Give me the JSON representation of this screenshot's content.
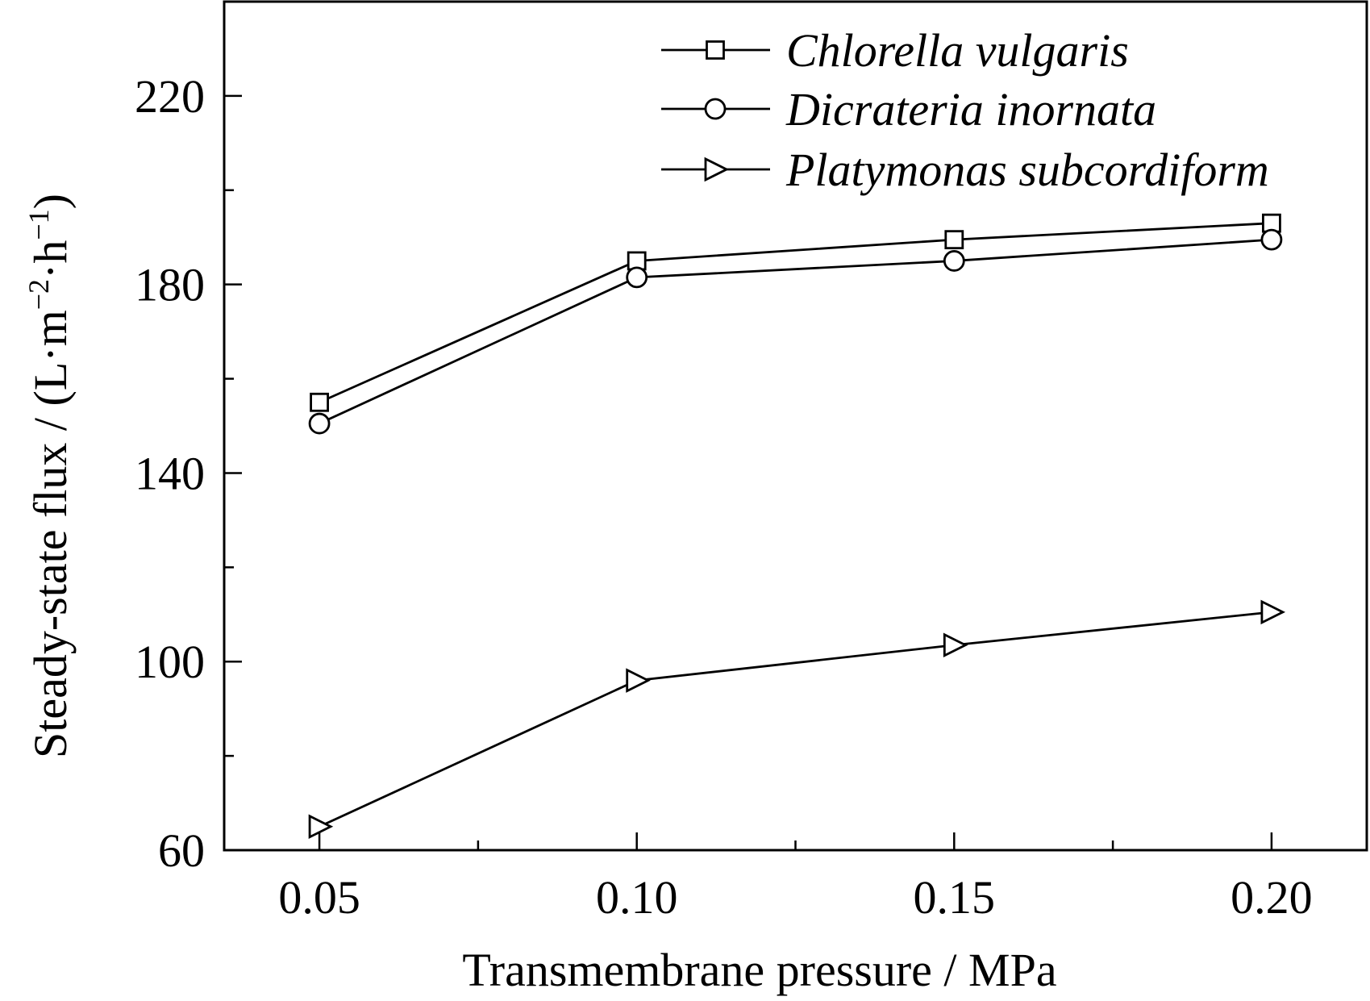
{
  "chart_data": {
    "type": "line",
    "xlabel": "Transmembrane pressure / MPa",
    "ylabel_main": "Steady-state flux / (L·m",
    "ylabel_sup1": "−2",
    "ylabel_mid": "·h",
    "ylabel_sup2": "−1",
    "ylabel_end": ")",
    "xlim": [
      0.035,
      0.215
    ],
    "ylim": [
      60,
      240
    ],
    "x_ticks": [
      0.05,
      0.1,
      0.15,
      0.2
    ],
    "x_tick_labels": [
      "0.05",
      "0.10",
      "0.15",
      "0.20"
    ],
    "x_minor_ticks": [
      0.075,
      0.125,
      0.175
    ],
    "y_ticks": [
      60,
      100,
      140,
      180,
      220
    ],
    "y_tick_labels": [
      "60",
      "100",
      "140",
      "180",
      "220"
    ],
    "y_minor_ticks": [
      80,
      120,
      160,
      200
    ],
    "grid": false,
    "legend_position": "top-right",
    "x": [
      0.05,
      0.1,
      0.15,
      0.2
    ],
    "series": [
      {
        "name": "Chlorella vulgaris",
        "marker": "square",
        "values": [
          155,
          185,
          189.5,
          193
        ]
      },
      {
        "name": "Dicrateria inornata",
        "marker": "circle",
        "values": [
          150.5,
          181.5,
          185,
          189.5
        ]
      },
      {
        "name": "Platymonas subcordiform",
        "marker": "triangle-right",
        "values": [
          65,
          96,
          103.5,
          110.5
        ]
      }
    ]
  }
}
